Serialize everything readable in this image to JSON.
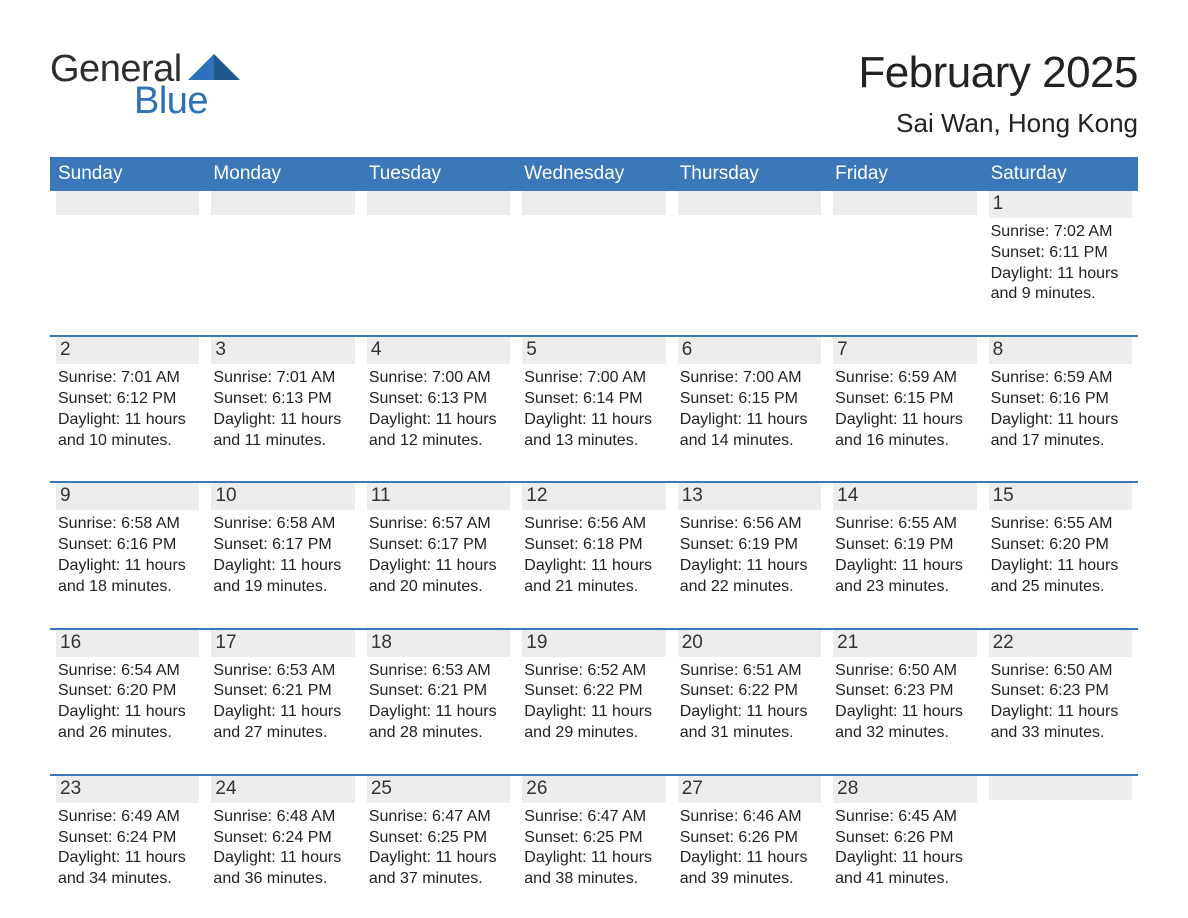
{
  "brand": {
    "text1": "General",
    "text2": "Blue",
    "color1": "#2e2e2e",
    "color2": "#2d71b8"
  },
  "header": {
    "month": "February 2025",
    "location": "Sai Wan, Hong Kong"
  },
  "style": {
    "header_bg": "#3a78b9",
    "header_text": "#ffffff",
    "band_bg": "#eceded",
    "week_border": "#3a78b9",
    "body_bg": "#ffffff",
    "text_color": "#222222",
    "font_family": "Arial, Helvetica, sans-serif",
    "month_title_fontsize": 44,
    "location_fontsize": 26,
    "header_cell_fontsize": 19,
    "daynum_fontsize": 19,
    "body_fontsize": 16
  },
  "calendar": {
    "type": "table",
    "columns": [
      "Sunday",
      "Monday",
      "Tuesday",
      "Wednesday",
      "Thursday",
      "Friday",
      "Saturday"
    ],
    "weeks": [
      [
        null,
        null,
        null,
        null,
        null,
        null,
        {
          "n": "1",
          "sunrise": "7:02 AM",
          "sunset": "6:11 PM",
          "daylight": "11 hours and 9 minutes."
        }
      ],
      [
        {
          "n": "2",
          "sunrise": "7:01 AM",
          "sunset": "6:12 PM",
          "daylight": "11 hours and 10 minutes."
        },
        {
          "n": "3",
          "sunrise": "7:01 AM",
          "sunset": "6:13 PM",
          "daylight": "11 hours and 11 minutes."
        },
        {
          "n": "4",
          "sunrise": "7:00 AM",
          "sunset": "6:13 PM",
          "daylight": "11 hours and 12 minutes."
        },
        {
          "n": "5",
          "sunrise": "7:00 AM",
          "sunset": "6:14 PM",
          "daylight": "11 hours and 13 minutes."
        },
        {
          "n": "6",
          "sunrise": "7:00 AM",
          "sunset": "6:15 PM",
          "daylight": "11 hours and 14 minutes."
        },
        {
          "n": "7",
          "sunrise": "6:59 AM",
          "sunset": "6:15 PM",
          "daylight": "11 hours and 16 minutes."
        },
        {
          "n": "8",
          "sunrise": "6:59 AM",
          "sunset": "6:16 PM",
          "daylight": "11 hours and 17 minutes."
        }
      ],
      [
        {
          "n": "9",
          "sunrise": "6:58 AM",
          "sunset": "6:16 PM",
          "daylight": "11 hours and 18 minutes."
        },
        {
          "n": "10",
          "sunrise": "6:58 AM",
          "sunset": "6:17 PM",
          "daylight": "11 hours and 19 minutes."
        },
        {
          "n": "11",
          "sunrise": "6:57 AM",
          "sunset": "6:17 PM",
          "daylight": "11 hours and 20 minutes."
        },
        {
          "n": "12",
          "sunrise": "6:56 AM",
          "sunset": "6:18 PM",
          "daylight": "11 hours and 21 minutes."
        },
        {
          "n": "13",
          "sunrise": "6:56 AM",
          "sunset": "6:19 PM",
          "daylight": "11 hours and 22 minutes."
        },
        {
          "n": "14",
          "sunrise": "6:55 AM",
          "sunset": "6:19 PM",
          "daylight": "11 hours and 23 minutes."
        },
        {
          "n": "15",
          "sunrise": "6:55 AM",
          "sunset": "6:20 PM",
          "daylight": "11 hours and 25 minutes."
        }
      ],
      [
        {
          "n": "16",
          "sunrise": "6:54 AM",
          "sunset": "6:20 PM",
          "daylight": "11 hours and 26 minutes."
        },
        {
          "n": "17",
          "sunrise": "6:53 AM",
          "sunset": "6:21 PM",
          "daylight": "11 hours and 27 minutes."
        },
        {
          "n": "18",
          "sunrise": "6:53 AM",
          "sunset": "6:21 PM",
          "daylight": "11 hours and 28 minutes."
        },
        {
          "n": "19",
          "sunrise": "6:52 AM",
          "sunset": "6:22 PM",
          "daylight": "11 hours and 29 minutes."
        },
        {
          "n": "20",
          "sunrise": "6:51 AM",
          "sunset": "6:22 PM",
          "daylight": "11 hours and 31 minutes."
        },
        {
          "n": "21",
          "sunrise": "6:50 AM",
          "sunset": "6:23 PM",
          "daylight": "11 hours and 32 minutes."
        },
        {
          "n": "22",
          "sunrise": "6:50 AM",
          "sunset": "6:23 PM",
          "daylight": "11 hours and 33 minutes."
        }
      ],
      [
        {
          "n": "23",
          "sunrise": "6:49 AM",
          "sunset": "6:24 PM",
          "daylight": "11 hours and 34 minutes."
        },
        {
          "n": "24",
          "sunrise": "6:48 AM",
          "sunset": "6:24 PM",
          "daylight": "11 hours and 36 minutes."
        },
        {
          "n": "25",
          "sunrise": "6:47 AM",
          "sunset": "6:25 PM",
          "daylight": "11 hours and 37 minutes."
        },
        {
          "n": "26",
          "sunrise": "6:47 AM",
          "sunset": "6:25 PM",
          "daylight": "11 hours and 38 minutes."
        },
        {
          "n": "27",
          "sunrise": "6:46 AM",
          "sunset": "6:26 PM",
          "daylight": "11 hours and 39 minutes."
        },
        {
          "n": "28",
          "sunrise": "6:45 AM",
          "sunset": "6:26 PM",
          "daylight": "11 hours and 41 minutes."
        },
        null
      ]
    ],
    "labels": {
      "sunrise": "Sunrise:",
      "sunset": "Sunset:",
      "daylight": "Daylight:"
    }
  }
}
